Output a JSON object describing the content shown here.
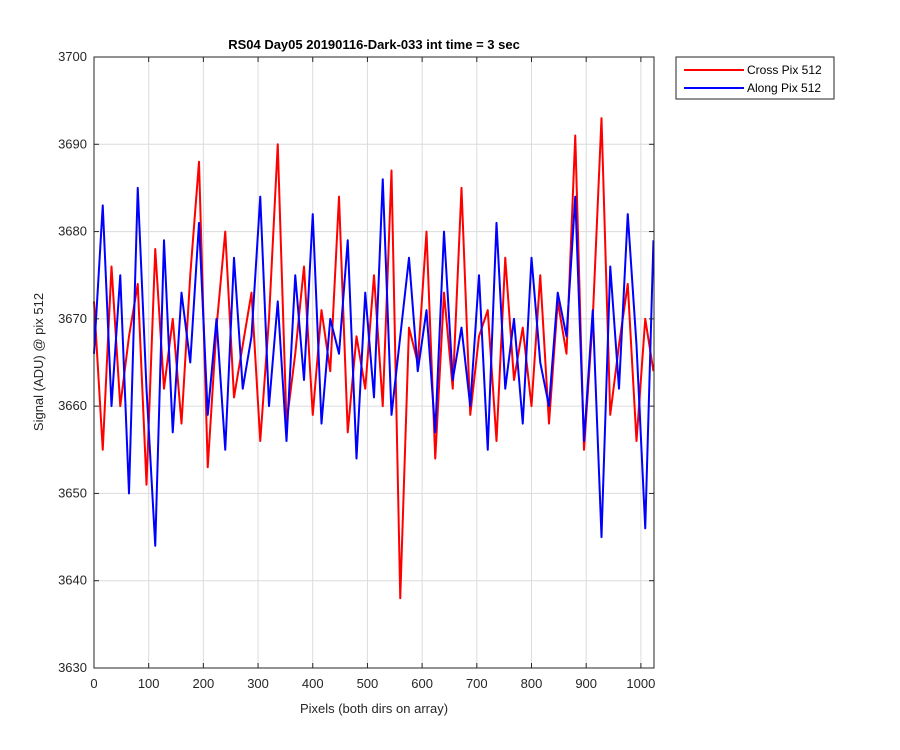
{
  "chart_data": {
    "type": "line",
    "title": "RS04 Day05 20190116-Dark-033 int time = 3 sec",
    "xlabel": "Pixels (both dirs on array)",
    "ylabel": "Signal (ADU) @ pix 512",
    "xlim": [
      0,
      1024
    ],
    "ylim": [
      3630,
      3700
    ],
    "xticks": [
      0,
      100,
      200,
      300,
      400,
      500,
      600,
      700,
      800,
      900,
      1000
    ],
    "yticks": [
      3630,
      3640,
      3650,
      3660,
      3670,
      3680,
      3690,
      3700
    ],
    "grid": true,
    "legend_position": "outside top-right",
    "x": [
      0,
      16,
      32,
      48,
      64,
      80,
      96,
      112,
      128,
      144,
      160,
      176,
      192,
      208,
      224,
      240,
      256,
      272,
      288,
      304,
      320,
      336,
      352,
      368,
      384,
      400,
      416,
      432,
      448,
      464,
      480,
      496,
      512,
      528,
      544,
      560,
      576,
      592,
      608,
      624,
      640,
      656,
      672,
      688,
      704,
      720,
      736,
      752,
      768,
      784,
      800,
      816,
      832,
      848,
      864,
      880,
      896,
      912,
      928,
      944,
      960,
      976,
      992,
      1008,
      1023
    ],
    "series": [
      {
        "name": "Cross Pix 512",
        "color": "#ff0000",
        "values": [
          3672,
          3655,
          3676,
          3660,
          3668,
          3674,
          3651,
          3678,
          3662,
          3670,
          3658,
          3675,
          3688,
          3653,
          3669,
          3680,
          3661,
          3667,
          3673,
          3656,
          3670,
          3690,
          3658,
          3666,
          3676,
          3659,
          3671,
          3664,
          3684,
          3657,
          3668,
          3662,
          3675,
          3660,
          3687,
          3638,
          3669,
          3665,
          3680,
          3654,
          3673,
          3662,
          3685,
          3659,
          3668,
          3671,
          3656,
          3677,
          3663,
          3669,
          3660,
          3675,
          3658,
          3672,
          3666,
          3691,
          3655,
          3670,
          3693,
          3659,
          3667,
          3674,
          3656,
          3670,
          3664
        ]
      },
      {
        "name": "Along Pix 512",
        "color": "#0000ff",
        "values": [
          3666,
          3683,
          3660,
          3675,
          3650,
          3685,
          3662,
          3644,
          3679,
          3657,
          3673,
          3665,
          3681,
          3659,
          3670,
          3655,
          3677,
          3662,
          3668,
          3684,
          3660,
          3672,
          3656,
          3675,
          3663,
          3682,
          3658,
          3670,
          3666,
          3679,
          3654,
          3673,
          3661,
          3686,
          3659,
          3668,
          3677,
          3664,
          3671,
          3657,
          3680,
          3663,
          3669,
          3660,
          3675,
          3655,
          3681,
          3662,
          3670,
          3658,
          3677,
          3665,
          3660,
          3673,
          3668,
          3684,
          3656,
          3671,
          3645,
          3676,
          3662,
          3682,
          3667,
          3646,
          3679
        ]
      }
    ]
  }
}
